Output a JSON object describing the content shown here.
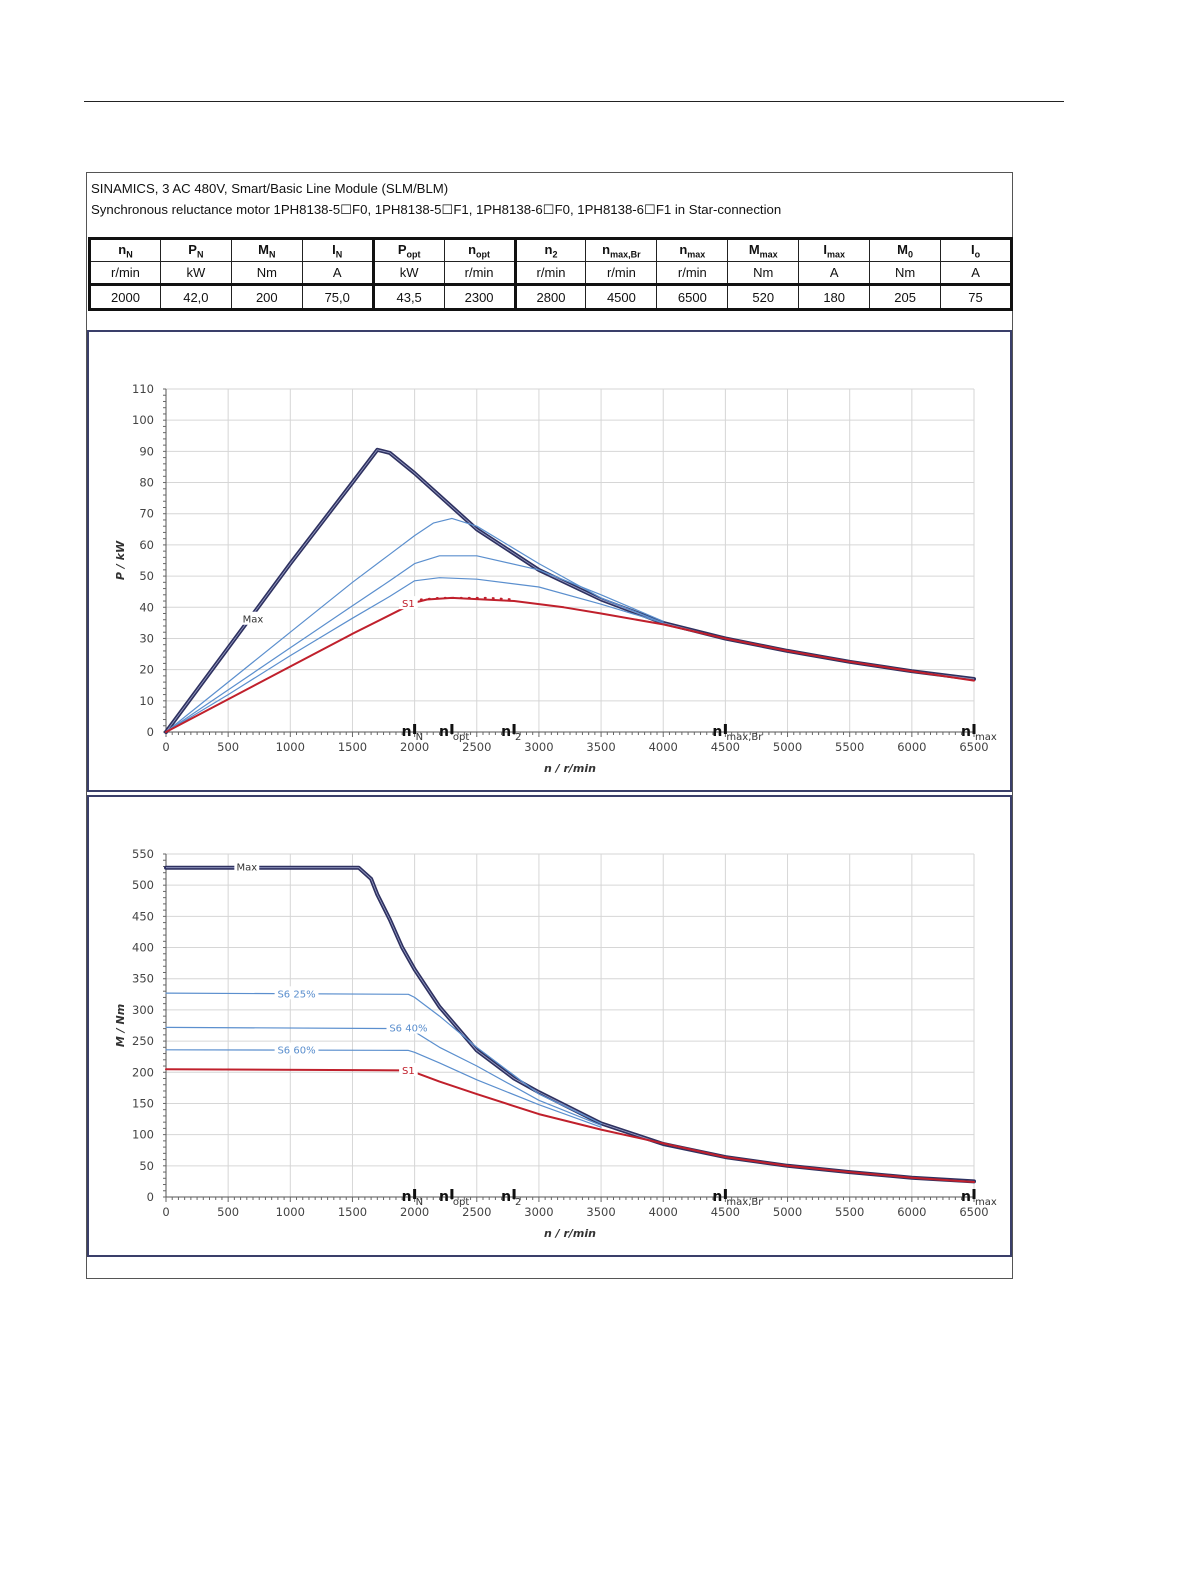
{
  "header": {
    "line1": "SINAMICS, 3 AC 480V, Smart/Basic Line Module (SLM/BLM)",
    "line2": "Synchronous reluctance motor  1PH8138-5☐F0,  1PH8138-5☐F1,  1PH8138-6☐F0,  1PH8138-6☐F1   in Star-connection"
  },
  "params": {
    "names": [
      {
        "main": "n",
        "sub": "N"
      },
      {
        "main": "P",
        "sub": "N"
      },
      {
        "main": "M",
        "sub": "N"
      },
      {
        "main": "I",
        "sub": "N"
      },
      {
        "main": "P",
        "sub": "opt"
      },
      {
        "main": "n",
        "sub": "opt"
      },
      {
        "main": "n",
        "sub": "2"
      },
      {
        "main": "n",
        "sub": "max,Br"
      },
      {
        "main": "n",
        "sub": "max"
      },
      {
        "main": "M",
        "sub": "max"
      },
      {
        "main": "I",
        "sub": "max"
      },
      {
        "main": "M",
        "sub": "0"
      },
      {
        "main": "I",
        "sub": "o"
      }
    ],
    "units": [
      "r/min",
      "kW",
      "Nm",
      "A",
      "kW",
      "r/min",
      "r/min",
      "r/min",
      "r/min",
      "Nm",
      "A",
      "Nm",
      "A"
    ],
    "values": [
      "2000",
      "42,0",
      "200",
      "75,0",
      "43,5",
      "2300",
      "2800",
      "4500",
      "6500",
      "520",
      "180",
      "205",
      "75"
    ]
  },
  "colors": {
    "max": "#2e3160",
    "s6": "#5b8fce",
    "s1": "#c0202c",
    "grid": "#d6d6d6",
    "frame": "#3a3f6a"
  },
  "chart_data": [
    {
      "type": "line",
      "xlabel": "n / r/min",
      "ylabel": "P / kW",
      "xlim": [
        0,
        6500
      ],
      "ylim": [
        0,
        110
      ],
      "x_ticks": [
        0,
        500,
        1000,
        1500,
        2000,
        2500,
        3000,
        3500,
        4000,
        4500,
        5000,
        5500,
        6000,
        6500
      ],
      "y_ticks": [
        0,
        10,
        20,
        30,
        40,
        50,
        60,
        70,
        80,
        90,
        100,
        110
      ],
      "grid": true,
      "markers": [
        {
          "x": 2000,
          "label": "n",
          "sub": "N"
        },
        {
          "x": 2300,
          "label": "n",
          "sub": "opt"
        },
        {
          "x": 2800,
          "label": "n",
          "sub": "2"
        },
        {
          "x": 4500,
          "label": "n",
          "sub": "max,Br"
        },
        {
          "x": 6500,
          "label": "n",
          "sub": "max"
        }
      ],
      "series": [
        {
          "name": "Max",
          "role": "max",
          "label_at": [
            700,
            36
          ],
          "x": [
            0,
            500,
            1000,
            1500,
            1700,
            1800,
            2000,
            2500,
            3000,
            3500,
            4000,
            4500,
            5000,
            5500,
            6000,
            6500
          ],
          "y": [
            0,
            27,
            54,
            80,
            90.5,
            89.5,
            83,
            65,
            52,
            42.5,
            35,
            30,
            26,
            22.5,
            19.5,
            17
          ]
        },
        {
          "name": "",
          "role": "s6",
          "x": [
            0,
            500,
            1000,
            1500,
            1800,
            2000,
            2150,
            2300,
            2500,
            3000,
            3500,
            4000
          ],
          "y": [
            0,
            16,
            32,
            48,
            57,
            63,
            67,
            68.5,
            66,
            54,
            43,
            35
          ]
        },
        {
          "name": "",
          "role": "s6",
          "x": [
            0,
            500,
            1000,
            1500,
            1800,
            2000,
            2200,
            2500,
            3000,
            3500,
            4000
          ],
          "y": [
            0,
            13.5,
            27,
            40.5,
            48.5,
            54,
            56.5,
            56.5,
            52,
            44,
            35.5
          ]
        },
        {
          "name": "",
          "role": "s6",
          "x": [
            0,
            500,
            1000,
            1500,
            1800,
            2000,
            2200,
            2500,
            3000,
            3500,
            4000
          ],
          "y": [
            0,
            12,
            24.5,
            36.5,
            43.5,
            48.5,
            49.5,
            49,
            46.5,
            41,
            35
          ]
        },
        {
          "name": "S1",
          "role": "s1",
          "label_at": [
            1950,
            41
          ],
          "x": [
            0,
            500,
            1000,
            1500,
            1900,
            2000,
            2100,
            2300,
            2800,
            3200,
            3500,
            4000,
            4500,
            5000,
            5500,
            6000,
            6500
          ],
          "y": [
            0,
            10.5,
            21,
            31.5,
            39.5,
            41.5,
            42.5,
            43,
            42,
            40,
            38,
            34.5,
            30,
            26,
            22.5,
            19.5,
            16.5
          ]
        },
        {
          "name": "",
          "role": "s1-dotted",
          "x": [
            2050,
            2200,
            2400,
            2600,
            2800
          ],
          "y": [
            42.5,
            43,
            43,
            43,
            42.5
          ]
        }
      ]
    },
    {
      "type": "line",
      "xlabel": "n / r/min",
      "ylabel": "M / Nm",
      "xlim": [
        0,
        6500
      ],
      "ylim": [
        0,
        550
      ],
      "x_ticks": [
        0,
        500,
        1000,
        1500,
        2000,
        2500,
        3000,
        3500,
        4000,
        4500,
        5000,
        5500,
        6000,
        6500
      ],
      "y_ticks": [
        0,
        50,
        100,
        150,
        200,
        250,
        300,
        350,
        400,
        450,
        500,
        550
      ],
      "grid": true,
      "markers": [
        {
          "x": 2000,
          "label": "n",
          "sub": "N"
        },
        {
          "x": 2300,
          "label": "n",
          "sub": "opt"
        },
        {
          "x": 2800,
          "label": "n",
          "sub": "2"
        },
        {
          "x": 4500,
          "label": "n",
          "sub": "max,Br"
        },
        {
          "x": 6500,
          "label": "n",
          "sub": "max"
        }
      ],
      "series": [
        {
          "name": "Max",
          "role": "max",
          "label_at": [
            650,
            528
          ],
          "x": [
            0,
            1550,
            1650,
            1700,
            1800,
            1900,
            2000,
            2200,
            2500,
            2800,
            3000,
            3500,
            4000,
            4500,
            5000,
            5500,
            6000,
            6500
          ],
          "y": [
            528,
            528,
            510,
            485,
            445,
            400,
            365,
            305,
            235,
            190,
            168,
            118,
            85,
            64,
            50,
            40,
            31,
            25
          ]
        },
        {
          "name": "S6 25%",
          "role": "s6",
          "label_at": [
            1050,
            325
          ],
          "x": [
            0,
            1950,
            2000,
            2200,
            2500,
            3000,
            3500
          ],
          "y": [
            327,
            325,
            320,
            290,
            240,
            165,
            118
          ]
        },
        {
          "name": "S6 40%",
          "role": "s6",
          "label_at": [
            1950,
            270
          ],
          "x": [
            0,
            1950,
            2000,
            2200,
            2500,
            3000,
            3500
          ],
          "y": [
            272,
            270,
            265,
            240,
            210,
            155,
            115
          ]
        },
        {
          "name": "S6 60%",
          "role": "s6",
          "label_at": [
            1050,
            235
          ],
          "x": [
            0,
            1950,
            2000,
            2200,
            2500,
            3000,
            3500
          ],
          "y": [
            236,
            235,
            232,
            215,
            188,
            148,
            112
          ]
        },
        {
          "name": "S1",
          "role": "s1",
          "label_at": [
            1950,
            202
          ],
          "x": [
            0,
            1900,
            2000,
            2200,
            2500,
            3000,
            3500,
            4000,
            4500,
            5000,
            5500,
            6000,
            6500
          ],
          "y": [
            205,
            203,
            200,
            185,
            165,
            133,
            108,
            86,
            64,
            50,
            40,
            31,
            24
          ]
        }
      ]
    }
  ]
}
